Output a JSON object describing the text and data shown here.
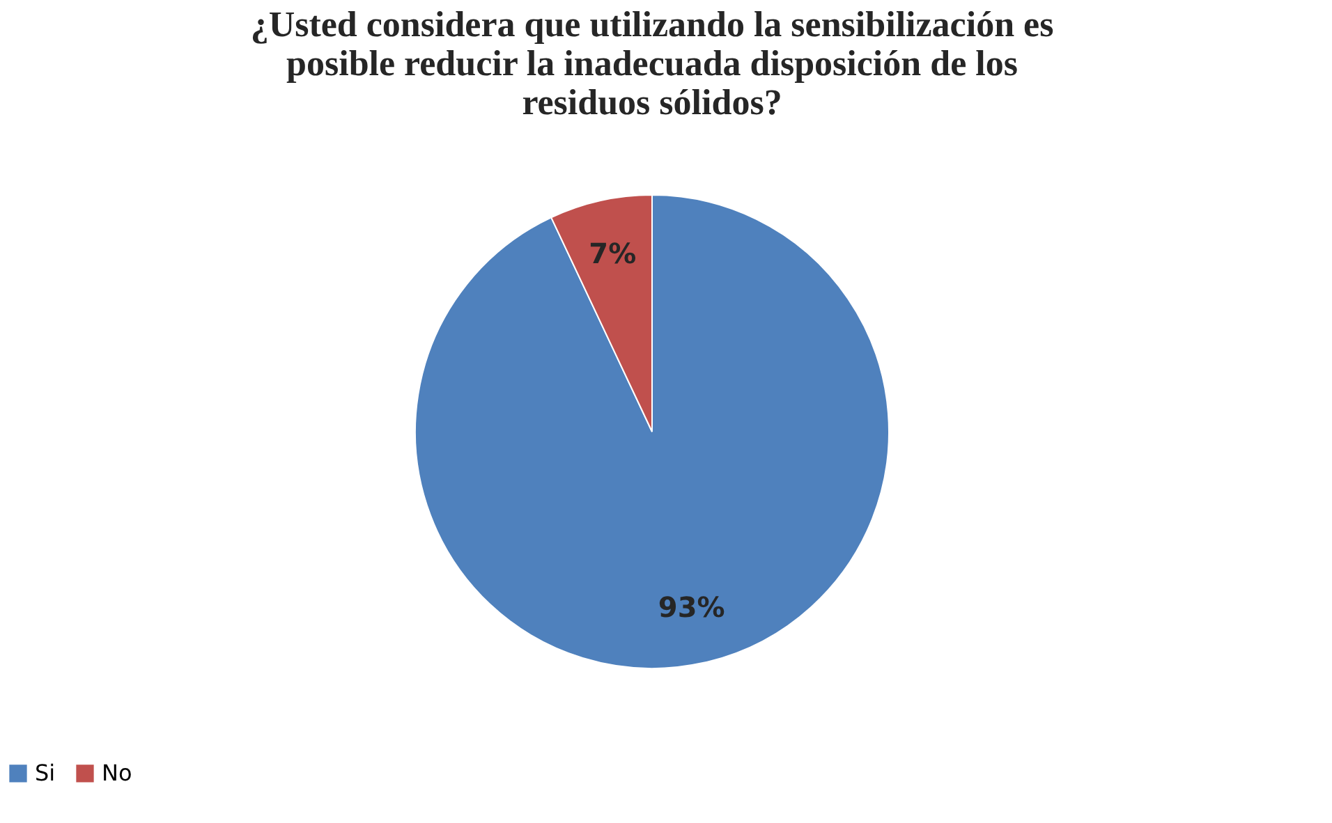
{
  "chart_data": {
    "type": "pie",
    "title": "¿Usted considera que utilizando la sensibilización es posible reducir la inadecuada disposición de los residuos sólidos?",
    "categories": [
      "Si",
      "No"
    ],
    "values": [
      93,
      7
    ],
    "colors": [
      "#4f81bd",
      "#c0504d"
    ],
    "value_labels": [
      "93%",
      "7%"
    ],
    "legend": "bottom"
  }
}
